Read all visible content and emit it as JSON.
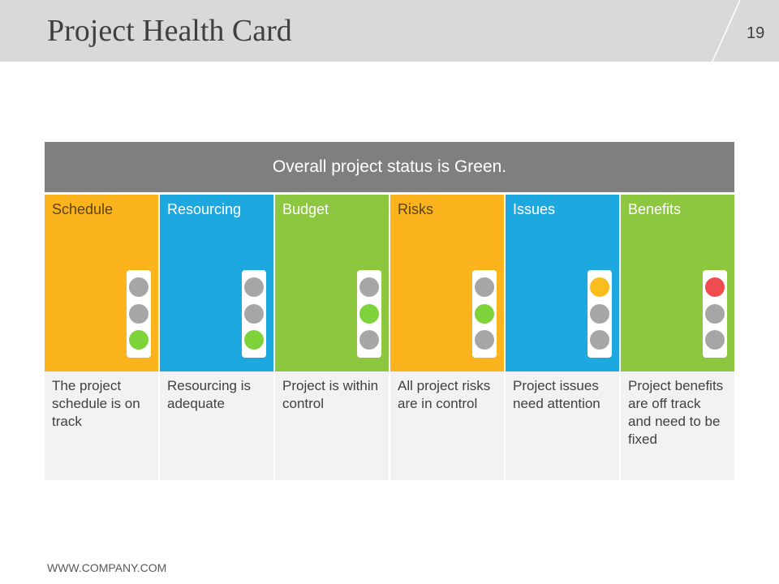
{
  "header": {
    "title": "Project Health Card",
    "page_number": "19"
  },
  "overall_status": "Overall project status is Green.",
  "colors": {
    "orange": "#fbb41e",
    "blue": "#1ea8e0",
    "green": "#8dc63f",
    "light_green": "#7ed33a",
    "light_amber": "#fbbc1e",
    "light_red": "#f04b4e",
    "light_off": "#a6a6a6"
  },
  "categories": [
    {
      "label": "Schedule",
      "color": "#fbb41e",
      "label_color": "#5b4414",
      "light": "green",
      "description": "The project schedule is on track"
    },
    {
      "label": "Resourcing",
      "color": "#1ea8e0",
      "label_color": "#ffffff",
      "light": "green",
      "description": "Resourcing is adequate"
    },
    {
      "label": "Budget",
      "color": "#8dc63f",
      "label_color": "#ffffff",
      "light": "amber-middle-green",
      "description": "Project is within control"
    },
    {
      "label": "Risks",
      "color": "#fbb41e",
      "label_color": "#5b4414",
      "light": "amber-middle-green",
      "description": "All project risks are in control"
    },
    {
      "label": "Issues",
      "color": "#1ea8e0",
      "label_color": "#ffffff",
      "light": "amber",
      "description": "Project issues need attention"
    },
    {
      "label": "Benefits",
      "color": "#8dc63f",
      "label_color": "#ffffff",
      "light": "red",
      "description": "Project benefits are off track and need to be fixed"
    }
  ],
  "lights_state": [
    [
      "off",
      "off",
      "green"
    ],
    [
      "off",
      "off",
      "green"
    ],
    [
      "off",
      "green",
      "off"
    ],
    [
      "off",
      "green",
      "off"
    ],
    [
      "amber",
      "off",
      "off"
    ],
    [
      "red",
      "off",
      "off"
    ]
  ],
  "footer": {
    "website": "WWW.COMPANY.COM"
  }
}
